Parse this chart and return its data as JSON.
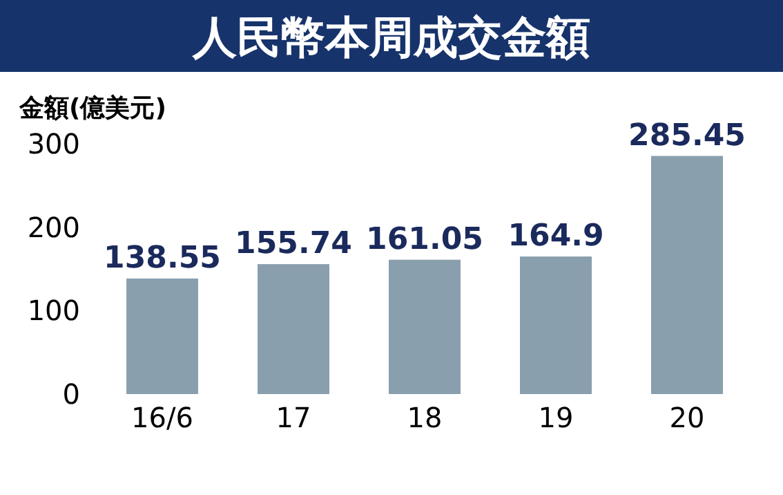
{
  "chart_data": {
    "type": "bar",
    "title": "人民幣本周成交金額",
    "ylabel": "金額(億美元)",
    "categories": [
      "16/6",
      "17",
      "18",
      "19",
      "20"
    ],
    "values": [
      138.55,
      155.74,
      161.05,
      164.9,
      285.45
    ],
    "color": "#8a9fae",
    "ylim": [
      0,
      300
    ],
    "yticks": [
      0,
      100,
      200,
      300
    ],
    "data_labels": true
  }
}
